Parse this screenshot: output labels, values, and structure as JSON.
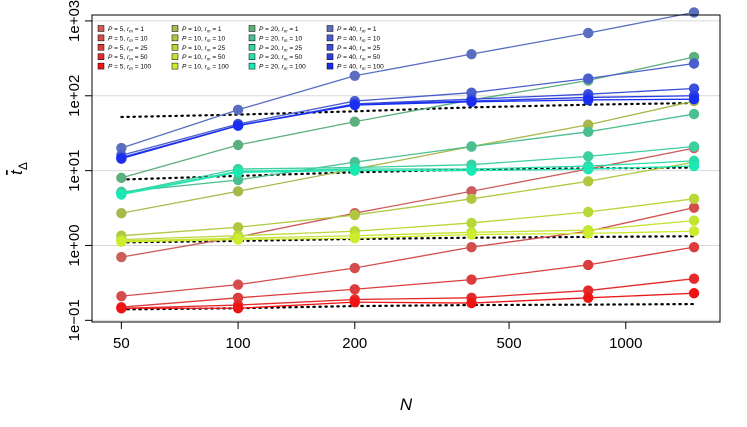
{
  "chart_data": {
    "type": "scatter",
    "xlabel": "N",
    "ylabel": "t̄_Δ",
    "xscale": "log",
    "yscale": "log",
    "x": [
      50,
      100,
      200,
      400,
      800,
      1500
    ],
    "xticks": [
      50,
      100,
      200,
      500,
      1000
    ],
    "xtick_labels": [
      "50",
      "100",
      "200",
      "500",
      "1000"
    ],
    "yticks": [
      0.1,
      1,
      10,
      100,
      1000
    ],
    "ytick_labels": [
      "1e−01",
      "1e+00",
      "1e+01",
      "1e+02",
      "1e+03"
    ],
    "xlim": [
      42,
      1750
    ],
    "ylim": [
      0.095,
      1200
    ],
    "grid": "horizontal at major y ticks",
    "legend": "top-left, 4 columns",
    "series": [
      {
        "name": "P = 5, r_m = 1",
        "color": "#cd5c5c",
        "values": [
          0.7,
          1.3,
          2.7,
          5.3,
          10.5,
          20
        ]
      },
      {
        "name": "P = 5, r_m = 10",
        "color": "#d44c4c",
        "values": [
          0.21,
          0.3,
          0.5,
          0.95,
          1.55,
          3.2
        ]
      },
      {
        "name": "P = 5, r_m = 25",
        "color": "#dc3c3c",
        "values": [
          0.15,
          0.2,
          0.26,
          0.35,
          0.55,
          0.95
        ]
      },
      {
        "name": "P = 5, r_m = 50",
        "color": "#e42a2a",
        "values": [
          0.145,
          0.16,
          0.19,
          0.2,
          0.25,
          0.36
        ]
      },
      {
        "name": "P = 5, r_m = 100",
        "color": "#ee1414",
        "values": [
          0.145,
          0.145,
          0.175,
          0.17,
          0.2,
          0.23
        ]
      },
      {
        "name": "P = 10, r_m = 1",
        "color": "#a8b84a",
        "values": [
          2.7,
          5.3,
          10.5,
          21,
          41,
          85
        ]
      },
      {
        "name": "P = 10, r_m = 10",
        "color": "#b0c840",
        "values": [
          1.35,
          1.75,
          2.55,
          4.2,
          7.2,
          13
        ]
      },
      {
        "name": "P = 10, r_m = 25",
        "color": "#b8d838",
        "values": [
          1.2,
          1.35,
          1.55,
          2.0,
          2.8,
          4.2
        ]
      },
      {
        "name": "P = 10, r_m = 50",
        "color": "#c4e432",
        "values": [
          1.15,
          1.25,
          1.35,
          1.5,
          1.6,
          2.15
        ]
      },
      {
        "name": "P = 10, r_m = 100",
        "color": "#ccec30",
        "values": [
          1.12,
          1.2,
          1.25,
          1.4,
          1.45,
          1.55
        ]
      },
      {
        "name": "P = 20, r_m = 1",
        "color": "#5eaf7e",
        "values": [
          8,
          22,
          45,
          88,
          160,
          330
        ]
      },
      {
        "name": "P = 20, r_m = 10",
        "color": "#4cbf90",
        "values": [
          5.2,
          7.5,
          13,
          21,
          33,
          57
        ]
      },
      {
        "name": "P = 20, r_m = 25",
        "color": "#3ccfa0",
        "values": [
          5.0,
          10.5,
          11,
          12,
          15.5,
          21
        ]
      },
      {
        "name": "P = 20, r_m = 50",
        "color": "#2cdcab",
        "values": [
          4.9,
          9.8,
          10.5,
          10.5,
          11.5,
          13.5
        ]
      },
      {
        "name": "P = 20, r_m = 100",
        "color": "#1ce8b4",
        "values": [
          4.8,
          9.5,
          10,
          10,
          10.5,
          11.5
        ]
      },
      {
        "name": "P = 40, r_m = 1",
        "color": "#5a6ebf",
        "values": [
          20,
          65,
          185,
          360,
          690,
          1300
        ]
      },
      {
        "name": "P = 40, r_m = 10",
        "color": "#4a5ece",
        "values": [
          16,
          42,
          85,
          110,
          170,
          270
        ]
      },
      {
        "name": "P = 40, r_m = 25",
        "color": "#3a4edb",
        "values": [
          15,
          40,
          78,
          90,
          105,
          125
        ]
      },
      {
        "name": "P = 40, r_m = 50",
        "color": "#2a3ee6",
        "values": [
          14.5,
          40,
          77,
          85,
          95,
          100
        ]
      },
      {
        "name": "P = 40, r_m = 100",
        "color": "#1a2ef2",
        "values": [
          14.5,
          40,
          75,
          83,
          88,
          90
        ]
      }
    ],
    "reference_lines": [
      {
        "values": [
          52,
          56,
          62,
          70,
          76,
          80
        ]
      },
      {
        "values": [
          7.6,
          8.5,
          9.5,
          10.3,
          10.7,
          11
        ]
      },
      {
        "values": [
          1.1,
          1.15,
          1.22,
          1.27,
          1.3,
          1.33
        ]
      },
      {
        "values": [
          0.14,
          0.145,
          0.155,
          0.16,
          0.162,
          0.165
        ]
      }
    ]
  }
}
